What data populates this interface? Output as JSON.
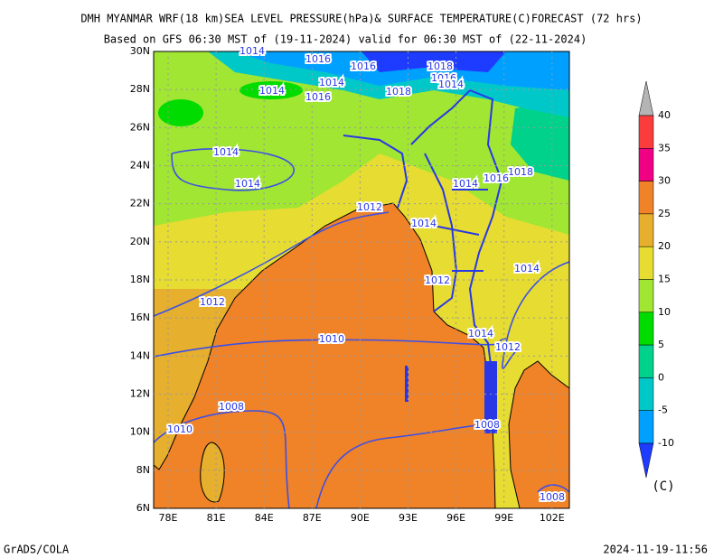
{
  "title": "DMH MYANMAR WRF(18 km)SEA LEVEL PRESSURE(hPa)& SURFACE TEMPERATURE(C)FORECAST (72 hrs)",
  "subtitle": "Based on GFS 06:30 MST of (19-11-2024) valid for 06:30 MST of (22-11-2024)",
  "map": {
    "lat_labels": [
      "30N",
      "28N",
      "26N",
      "24N",
      "22N",
      "20N",
      "18N",
      "16N",
      "14N",
      "12N",
      "10N",
      "8N",
      "6N"
    ],
    "lon_labels": [
      "78E",
      "81E",
      "84E",
      "87E",
      "90E",
      "93E",
      "96E",
      "99E",
      "102E"
    ],
    "contour_labels": [
      1014,
      1016,
      1016,
      1018,
      1016,
      1014,
      1014,
      1014,
      1016,
      1018,
      1014,
      1014,
      1012,
      1014,
      1018,
      1016,
      1014,
      1014,
      1012,
      1012,
      1010,
      1014,
      1012,
      1008,
      1010,
      1008,
      1008
    ]
  },
  "colorbar": {
    "ticks": [
      40,
      35,
      30,
      25,
      20,
      15,
      10,
      5,
      0,
      -5,
      -10
    ],
    "colors": [
      "#b4b4b4",
      "#fa3c3c",
      "#f00082",
      "#f08228",
      "#e6af2d",
      "#e6dc32",
      "#a0e632",
      "#00dc00",
      "#00d28c",
      "#00c8c8",
      "#00a0ff",
      "#1e3cff"
    ],
    "unit": "(C)"
  },
  "footer": {
    "left": "GrADS/COLA",
    "right": "2024-11-19-11:56"
  }
}
